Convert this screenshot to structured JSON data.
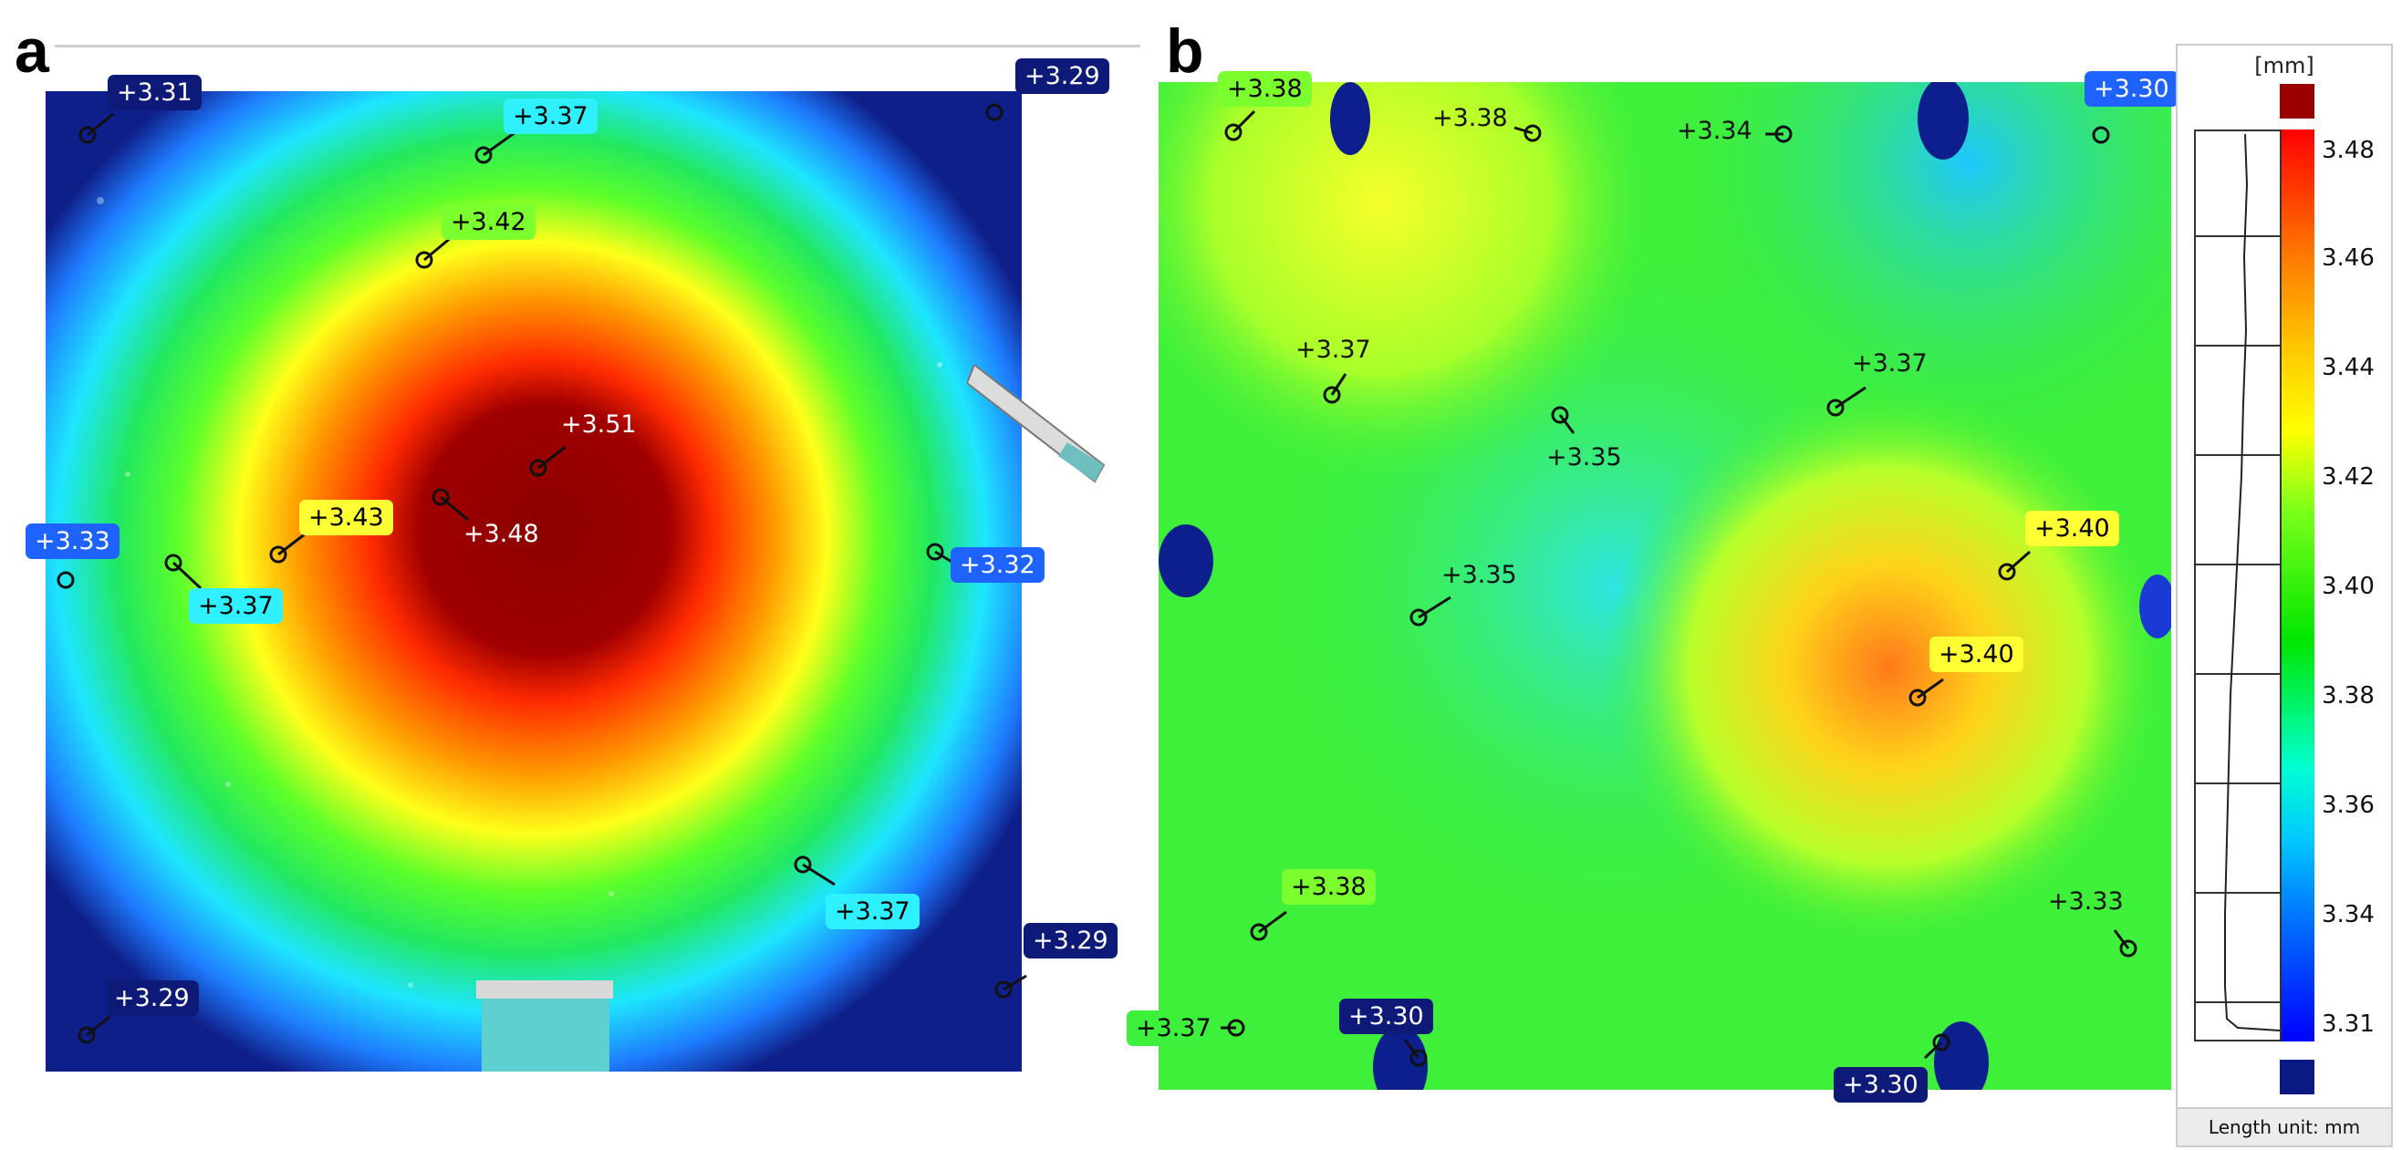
{
  "panels": {
    "a": {
      "label": "a"
    },
    "b": {
      "label": "b"
    }
  },
  "panel_a_tags": [
    {
      "text": "+3.31",
      "bg": "#0e1a78",
      "fg": "dark"
    },
    {
      "text": "+3.29",
      "bg": "#0e1a78",
      "fg": "dark"
    },
    {
      "text": "+3.37",
      "bg": "#2ef0ff",
      "fg": "light"
    },
    {
      "text": "+3.42",
      "bg": "#7cff2e",
      "fg": "light"
    },
    {
      "text": "+3.51",
      "bg": "",
      "fg": "plain-light"
    },
    {
      "text": "+3.48",
      "bg": "",
      "fg": "plain-light"
    },
    {
      "text": "+3.43",
      "bg": "#ffff33",
      "fg": "light"
    },
    {
      "text": "+3.33",
      "bg": "#1e63ff",
      "fg": "dark"
    },
    {
      "text": "+3.37",
      "bg": "#2ef0ff",
      "fg": "light"
    },
    {
      "text": "+3.32",
      "bg": "#1e63ff",
      "fg": "dark"
    },
    {
      "text": "+3.37",
      "bg": "#2ef0ff",
      "fg": "light"
    },
    {
      "text": "+3.29",
      "bg": "#0e1a78",
      "fg": "dark"
    },
    {
      "text": "+3.29",
      "bg": "#0e1a78",
      "fg": "dark"
    }
  ],
  "panel_b_tags": [
    {
      "text": "+3.38",
      "bg": "#7cff2e",
      "fg": "light"
    },
    {
      "text": "+3.38",
      "bg": "",
      "fg": "plain-dark"
    },
    {
      "text": "+3.34",
      "bg": "",
      "fg": "plain-dark"
    },
    {
      "text": "+3.30",
      "bg": "#1e63ff",
      "fg": "dark"
    },
    {
      "text": "+3.37",
      "bg": "",
      "fg": "plain-dark"
    },
    {
      "text": "+3.37",
      "bg": "",
      "fg": "plain-dark"
    },
    {
      "text": "+3.35",
      "bg": "",
      "fg": "plain-dark"
    },
    {
      "text": "+3.40",
      "bg": "#ffff33",
      "fg": "light"
    },
    {
      "text": "+3.35",
      "bg": "",
      "fg": "plain-dark"
    },
    {
      "text": "+3.40",
      "bg": "#ffff33",
      "fg": "light"
    },
    {
      "text": "+3.38",
      "bg": "#7cff2e",
      "fg": "light"
    },
    {
      "text": "+3.33",
      "bg": "",
      "fg": "plain-dark"
    },
    {
      "text": "+3.37",
      "bg": "#3cf03c",
      "fg": "light"
    },
    {
      "text": "+3.30",
      "bg": "#0e1a78",
      "fg": "dark"
    },
    {
      "text": "+3.30",
      "bg": "#0e1a78",
      "fg": "dark"
    }
  ],
  "legend": {
    "unit": "[mm]",
    "ticks": [
      "3.48",
      "3.46",
      "3.44",
      "3.42",
      "3.40",
      "3.38",
      "3.36",
      "3.34",
      "3.31"
    ],
    "footer": "Length unit: mm",
    "over_color": "#9b0000",
    "under_color": "#0b1a82"
  }
}
